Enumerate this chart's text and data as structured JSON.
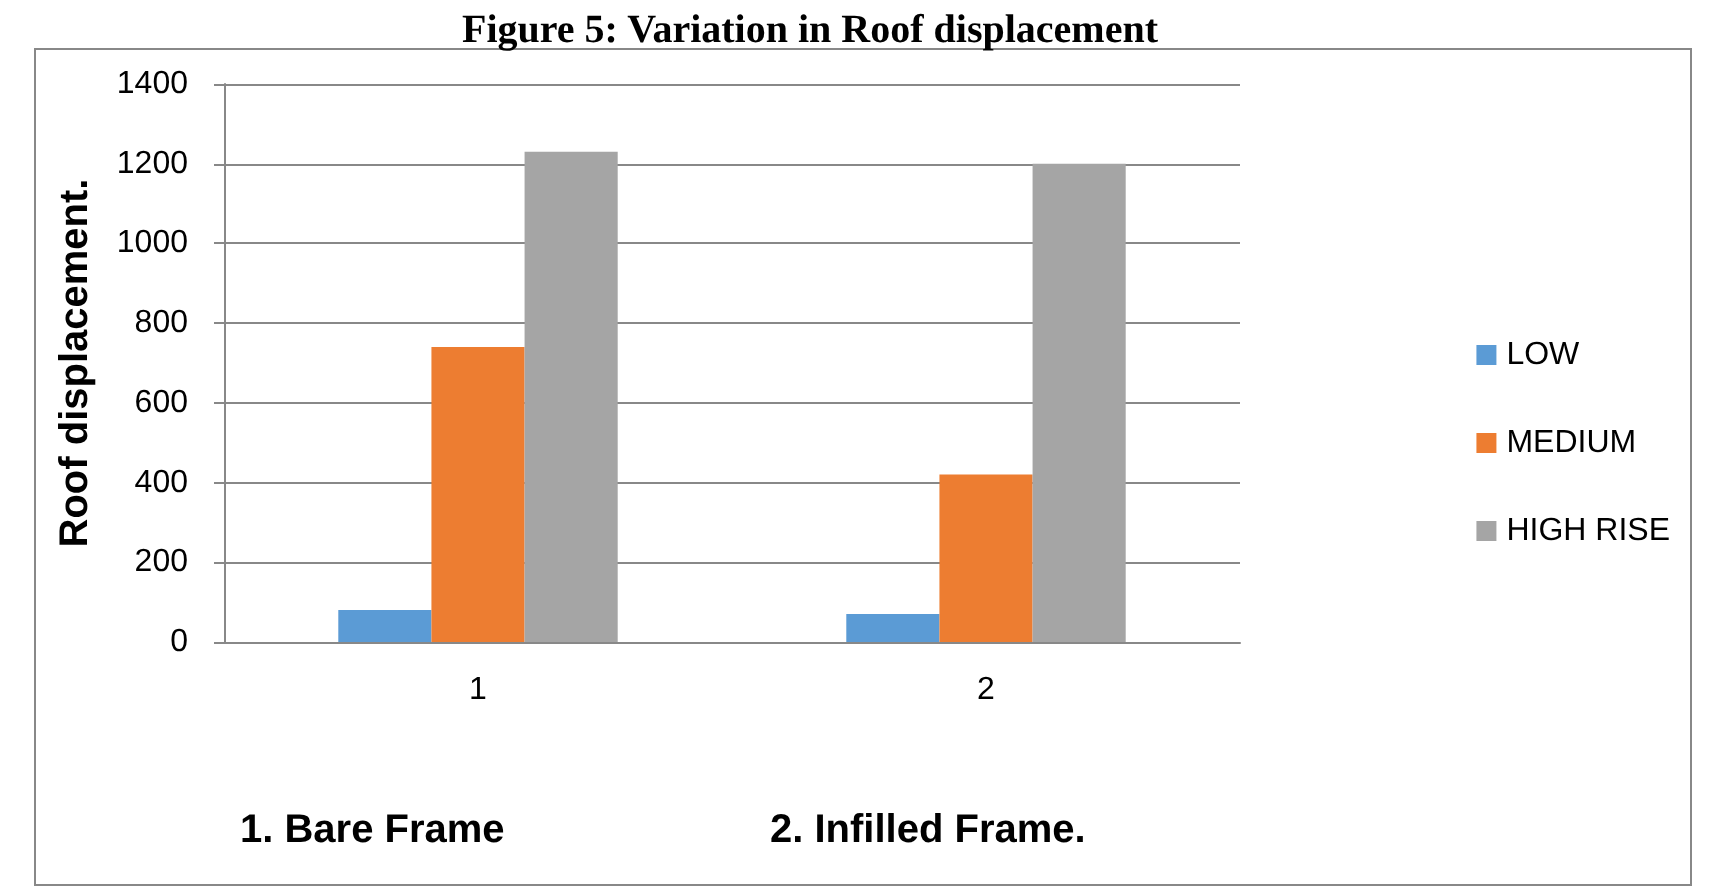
{
  "chart_data": {
    "type": "bar",
    "title": "Figure 5: Variation in Roof displacement",
    "ylabel": "Roof displacement.",
    "categories": [
      "1",
      "2"
    ],
    "series": [
      {
        "name": "LOW",
        "color": "#5b9bd5",
        "values": [
          80,
          70
        ]
      },
      {
        "name": "MEDIUM",
        "color": "#ed7d31",
        "values": [
          740,
          420
        ]
      },
      {
        "name": "HIGH RISE",
        "color": "#a5a5a5",
        "values": [
          1230,
          1200
        ]
      }
    ],
    "ylim": [
      0,
      1400
    ],
    "yticks": [
      0,
      200,
      400,
      600,
      800,
      1000,
      1200,
      1400
    ],
    "grid": "y",
    "legend": "right",
    "annotations": [
      "1. Bare Frame",
      "2. Infilled Frame."
    ]
  }
}
